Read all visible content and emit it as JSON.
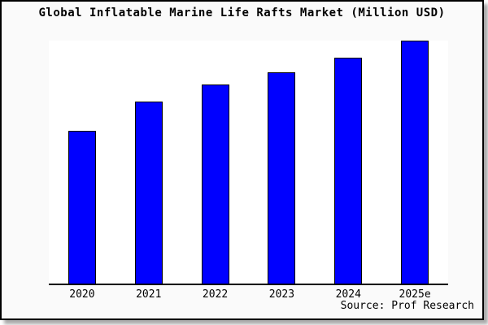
{
  "title": "Global Inflatable Marine Life Rafts Market (Million USD)",
  "source_credit": "Source: Prof Research",
  "colors": {
    "bar_fill": "#0000ff",
    "bar_border": "#000000",
    "page_background": "#fafafa",
    "plot_background": "#ffffff",
    "axis": "#000000",
    "frame_border": "#000000",
    "shadow": "#aaaaaa"
  },
  "chart_data": {
    "type": "bar",
    "title": "Global Inflatable Marine Life Rafts Market (Million USD)",
    "categories": [
      "2020",
      "2021",
      "2022",
      "2023",
      "2024",
      "2025e"
    ],
    "values": [
      63,
      75,
      82,
      87,
      93,
      100
    ],
    "values_unit": "relative height, % of tallest bar (no y-axis tick labels shown in chart)",
    "xlabel": "",
    "ylabel": "",
    "ylim": [
      0,
      100
    ],
    "grid": false,
    "legend": false,
    "bar_color": "#0000ff",
    "source": "Source: Prof Research"
  }
}
